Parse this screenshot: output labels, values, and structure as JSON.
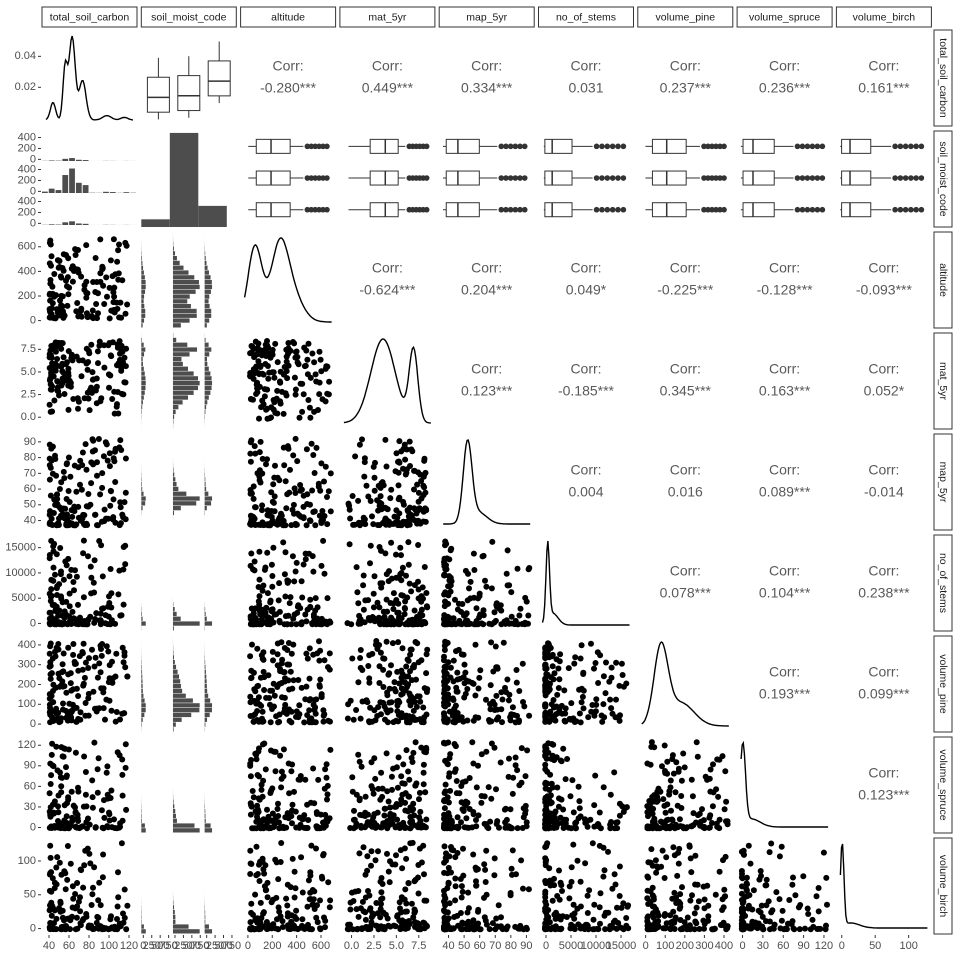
{
  "chart_data": {
    "type": "scatter-matrix",
    "variables": [
      {
        "name": "total_soil_carbon",
        "lim": [
          33,
          128
        ],
        "ticks": [
          40,
          60,
          80,
          100,
          120
        ]
      },
      {
        "name": "soil_moist_code"
      },
      {
        "name": "altitude",
        "lim": [
          -60,
          720
        ],
        "ticks": [
          0,
          200,
          400,
          600
        ]
      },
      {
        "name": "mat_5yr",
        "lim": [
          -1.3,
          9.3
        ],
        "ticks": [
          {
            "value": 0,
            "label": "0.0"
          },
          2.5,
          {
            "value": 5,
            "label": "5.0"
          },
          7.5
        ]
      },
      {
        "name": "map_5yr",
        "lim": [
          34,
          95
        ],
        "ticks": [
          40,
          50,
          60,
          70,
          80,
          90
        ]
      },
      {
        "name": "no_of_stems",
        "lim": [
          -1500,
          17500
        ],
        "ticks": [
          0,
          5000,
          10000,
          15000
        ]
      },
      {
        "name": "volume_pine",
        "lim": [
          -40,
          445
        ],
        "ticks": [
          0,
          100,
          200,
          300,
          400
        ]
      },
      {
        "name": "volume_spruce",
        "lim": [
          -8,
          132
        ],
        "ticks": [
          0,
          30,
          60,
          90,
          120
        ]
      },
      {
        "name": "volume_birch",
        "lim": [
          -8,
          134
        ],
        "ticks": [
          0,
          50,
          100
        ]
      }
    ],
    "density_lim": [
      -0.005,
      0.057
    ],
    "density_ticks": [
      0.02,
      0.04
    ],
    "count_lim": [
      -30,
      520
    ],
    "count_ticks": [
      0,
      200,
      400
    ],
    "bar_count_lim": [
      -60,
      820
    ],
    "bar_count_ticks": [
      0,
      250,
      500,
      750
    ],
    "corr_label": "Corr:",
    "correlations": [
      [
        null,
        null,
        "-0.280***",
        "0.449***",
        "0.334***",
        "0.031",
        "0.237***",
        "0.236***",
        "0.161***"
      ],
      [
        null,
        null,
        null,
        null,
        null,
        null,
        null,
        null,
        null
      ],
      [
        null,
        null,
        null,
        "-0.624***",
        "0.204***",
        "0.049*",
        "-0.225***",
        "-0.128***",
        "-0.093***"
      ],
      [
        null,
        null,
        null,
        null,
        "0.123***",
        "-0.185***",
        "0.345***",
        "0.163***",
        "0.052*"
      ],
      [
        null,
        null,
        null,
        null,
        null,
        "0.004",
        "0.016",
        "0.089***",
        "-0.014"
      ],
      [
        null,
        null,
        null,
        null,
        null,
        null,
        "0.078***",
        "0.104***",
        "0.238***"
      ],
      [
        null,
        null,
        null,
        null,
        null,
        null,
        null,
        "0.193***",
        "0.099***"
      ],
      [
        null,
        null,
        null,
        null,
        null,
        null,
        null,
        null,
        "0.123***"
      ],
      [
        null,
        null,
        null,
        null,
        null,
        null,
        null,
        null,
        null
      ]
    ]
  }
}
